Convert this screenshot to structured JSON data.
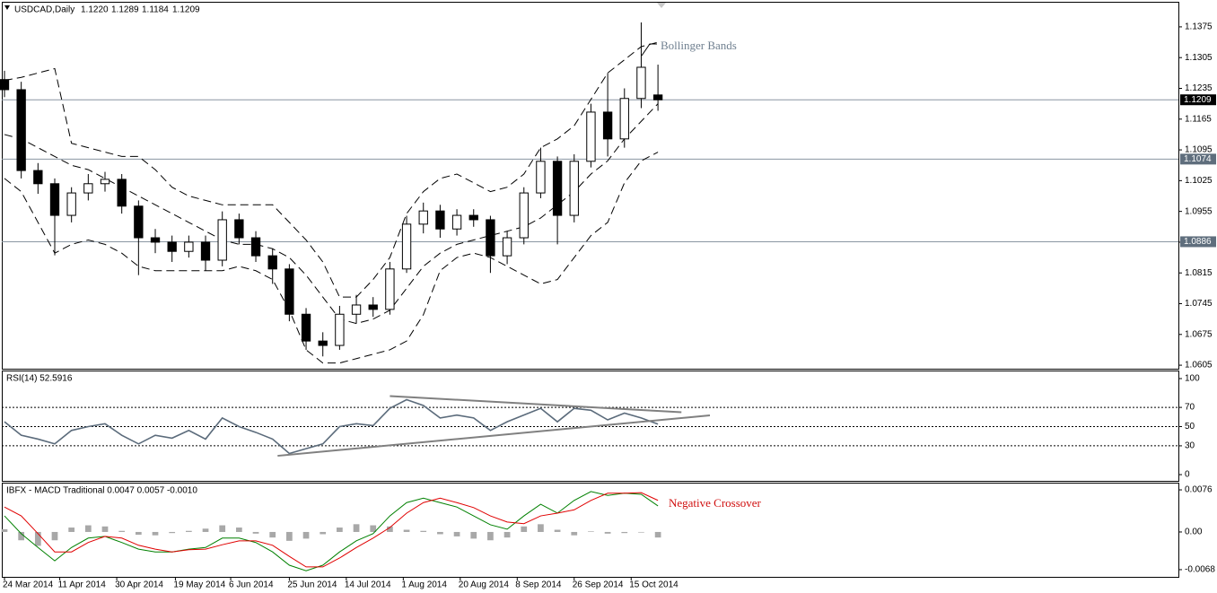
{
  "chart_data": [
    {
      "type": "candlestick",
      "title": "USDCAD,Daily",
      "header_labels": [
        "1.1220",
        "1.1289",
        "1.1184",
        "1.1209"
      ],
      "color_up": "#ffffff",
      "color_down": "#000000",
      "open": [
        1.1255,
        1.1232,
        1.1048,
        1.1018,
        1.0946,
        1.0997,
        1.1018,
        1.1028,
        1.0967,
        1.0895,
        1.0885,
        1.0864,
        1.0885,
        1.0844,
        1.0936,
        1.0895,
        1.0854,
        1.0824,
        1.0721,
        1.066,
        1.065,
        1.0721,
        1.0742,
        1.0732,
        1.0824,
        1.0926,
        1.0956,
        1.0915,
        1.0946,
        1.0936,
        1.0854,
        1.0895,
        1.0997,
        1.1069,
        1.0946,
        1.1069,
        1.1181,
        1.112,
        1.1212,
        1.122
      ],
      "high": [
        1.1275,
        1.125,
        1.1065,
        1.103,
        1.101,
        1.104,
        1.1045,
        1.104,
        1.098,
        1.0915,
        1.09,
        1.09,
        1.09,
        1.0955,
        1.095,
        1.091,
        1.087,
        1.0835,
        1.0735,
        1.068,
        1.074,
        1.0765,
        1.076,
        1.084,
        1.0945,
        1.0975,
        1.097,
        1.096,
        1.096,
        1.0945,
        1.091,
        1.101,
        1.11,
        1.108,
        1.1085,
        1.12,
        1.127,
        1.1235,
        1.1385,
        1.1289
      ],
      "low": [
        1.1215,
        1.103,
        1.0995,
        1.0855,
        1.093,
        1.098,
        1.1,
        1.095,
        1.081,
        1.086,
        1.084,
        1.085,
        1.082,
        1.083,
        1.088,
        1.084,
        1.079,
        1.0705,
        1.064,
        1.0625,
        1.064,
        1.07,
        1.0715,
        1.072,
        1.0815,
        1.0905,
        1.0895,
        1.09,
        1.092,
        1.0815,
        1.0835,
        1.088,
        1.0985,
        1.088,
        1.093,
        1.1055,
        1.108,
        1.11,
        1.119,
        1.1184
      ],
      "close": [
        1.1232,
        1.1048,
        1.1018,
        1.0946,
        1.0997,
        1.1018,
        1.1028,
        1.0967,
        1.0895,
        1.0885,
        1.0864,
        1.0885,
        1.0844,
        1.0936,
        1.0895,
        1.0854,
        1.0824,
        1.0721,
        1.066,
        1.065,
        1.0721,
        1.0742,
        1.0732,
        1.0824,
        1.0926,
        1.0956,
        1.0915,
        1.0946,
        1.0936,
        1.0854,
        1.0895,
        1.0997,
        1.1069,
        1.0946,
        1.1069,
        1.1181,
        1.112,
        1.1212,
        1.1283,
        1.1209
      ],
      "bands": {
        "label": "Bollinger Bands",
        "color": "#000000",
        "upper": [
          1.1253,
          1.126,
          1.127,
          1.128,
          1.111,
          1.11,
          1.109,
          1.108,
          1.108,
          1.105,
          1.101,
          1.099,
          1.098,
          1.097,
          1.097,
          1.097,
          1.097,
          1.093,
          1.089,
          1.084,
          1.076,
          1.076,
          1.08,
          1.085,
          1.095,
          1.1,
          1.103,
          1.104,
          1.102,
          1.1,
          1.101,
          1.104,
          1.11,
          1.112,
          1.115,
          1.121,
          1.127,
          1.13,
          1.133,
          1.134
        ],
        "middle": [
          1.113,
          1.112,
          1.11,
          1.108,
          1.106,
          1.105,
          1.103,
          1.101,
          1.099,
          1.097,
          1.095,
          1.093,
          1.091,
          1.089,
          1.088,
          1.088,
          1.087,
          1.085,
          1.081,
          1.076,
          1.071,
          1.07,
          1.071,
          1.073,
          1.078,
          1.083,
          1.086,
          1.088,
          1.089,
          1.09,
          1.091,
          1.092,
          1.094,
          1.097,
          1.1,
          1.104,
          1.107,
          1.112,
          1.116,
          1.12
        ],
        "lower": [
          1.103,
          1.1,
          1.093,
          1.086,
          1.088,
          1.089,
          1.088,
          1.086,
          1.083,
          1.082,
          1.082,
          1.082,
          1.082,
          1.082,
          1.083,
          1.082,
          1.08,
          1.073,
          1.064,
          1.061,
          1.061,
          1.062,
          1.063,
          1.064,
          1.066,
          1.072,
          1.082,
          1.085,
          1.086,
          1.085,
          1.083,
          1.081,
          1.079,
          1.08,
          1.085,
          1.09,
          1.093,
          1.102,
          1.107,
          1.109
        ]
      },
      "hlines": [
        {
          "value": 1.1209,
          "color": "#000000"
        },
        {
          "value": 1.1074,
          "color": "#5f6e7d"
        },
        {
          "value": 1.0886,
          "color": "#5f6e7d"
        }
      ],
      "ylim": [
        1.0597,
        1.1432
      ],
      "yticks": [
        1.0605,
        1.0675,
        1.0745,
        1.0815,
        1.0885,
        1.0955,
        1.1025,
        1.1095,
        1.1165,
        1.1235,
        1.1305,
        1.1375
      ],
      "xlim": [
        -0.16,
        70.06
      ],
      "xticks": [
        {
          "value": 0,
          "label": "24 Mar 2014"
        },
        {
          "value": 3.3,
          "label": "11 Apr 2014"
        },
        {
          "value": 6.7,
          "label": "30 Apr 2014"
        },
        {
          "value": 10.2,
          "label": "19 May 2014"
        },
        {
          "value": 13.5,
          "label": "6 Jun 2014"
        },
        {
          "value": 17,
          "label": "25 Jun 2014"
        },
        {
          "value": 20.4,
          "label": "14 Jul 2014"
        },
        {
          "value": 23.8,
          "label": "1 Aug 2014"
        },
        {
          "value": 27.2,
          "label": "20 Aug 2014"
        },
        {
          "value": 30.6,
          "label": "8 Sep 2014"
        },
        {
          "value": 34,
          "label": "26 Sep 2014"
        },
        {
          "value": 37.4,
          "label": "15 Oct 2014"
        }
      ]
    },
    {
      "type": "line",
      "title": "RSI(14) 52.5916",
      "color": "#5b6b7b",
      "values": [
        55,
        41,
        37,
        32,
        46,
        50,
        53,
        41,
        32,
        41,
        38,
        46,
        37,
        59,
        50,
        44,
        37,
        22,
        27,
        32,
        50,
        53,
        51,
        69,
        78,
        72,
        59,
        62,
        59,
        46,
        55,
        62,
        69,
        55,
        69,
        67,
        57,
        64,
        59,
        52.6
      ],
      "levels": [
        70,
        50,
        30
      ],
      "trendlines": [
        {
          "x": [
            23,
            40.4
          ],
          "y": [
            81.8,
            65
          ]
        },
        {
          "x": [
            16.3,
            42.1
          ],
          "y": [
            19.6,
            61.7
          ]
        }
      ],
      "ylim": [
        -6.5,
        108.4
      ],
      "yticks": [
        100,
        70,
        50,
        30,
        0
      ]
    },
    {
      "type": "macd",
      "title": "IBFX - MACD Traditional 0.0047 0.0057 -0.0010",
      "annotation": "Negative Crossover",
      "histogram": {
        "color": "#a8a8a8",
        "values": [
          0.0005,
          -0.0015,
          -0.0025,
          -0.0015,
          0.0008,
          0.0012,
          0.001,
          0.0002,
          -0.0005,
          -0.0006,
          -0.0002,
          0.0002,
          0.0006,
          0.0012,
          0.0008,
          -0.0003,
          -0.001,
          -0.0016,
          -0.0012,
          -0.0004,
          0.0008,
          0.0014,
          0.0012,
          0.001,
          0.0004,
          0.0002,
          -0.0004,
          -0.0008,
          -0.0012,
          -0.0015,
          -0.001,
          0.001,
          0.0014,
          0.0004,
          -0.0006,
          0.0001,
          -0.0003,
          -0.0002,
          -0.0001,
          -0.001
        ]
      },
      "series": [
        {
          "color": "#008000",
          "values": [
            0.0029,
            -0.0003,
            -0.0028,
            -0.0052,
            -0.0028,
            -0.0011,
            -0.0008,
            -0.0019,
            -0.0031,
            -0.0036,
            -0.0036,
            -0.0031,
            -0.0028,
            -0.0011,
            -0.0011,
            -0.0019,
            -0.0036,
            -0.006,
            -0.007,
            -0.006,
            -0.0036,
            -0.0016,
            -0.0003,
            0.0029,
            0.0053,
            0.0061,
            0.0053,
            0.0045,
            0.0029,
            0.0013,
            0.0005,
            0.0029,
            0.005,
            0.0034,
            0.0057,
            0.0073,
            0.0066,
            0.007,
            0.0068,
            0.0047
          ]
        },
        {
          "color": "#e00000",
          "values": [
            0.0045,
            0.0029,
            -0.0003,
            -0.0036,
            -0.0036,
            -0.0019,
            -0.0008,
            -0.0011,
            -0.0024,
            -0.0031,
            -0.0036,
            -0.0032,
            -0.0031,
            -0.0023,
            -0.0016,
            -0.0016,
            -0.0024,
            -0.0044,
            -0.0063,
            -0.0063,
            -0.0047,
            -0.0028,
            -0.0011,
            0.0008,
            0.0034,
            0.0053,
            0.0061,
            0.0053,
            0.0044,
            0.0029,
            0.0018,
            0.0015,
            0.0029,
            0.0034,
            0.004,
            0.0057,
            0.007,
            0.007,
            0.0071,
            0.0057
          ]
        }
      ],
      "ylim": [
        -0.0081,
        0.0089
      ],
      "yticks": [
        0.0076,
        {
          "value": 0,
          "label": "0.00"
        },
        -0.0068
      ]
    }
  ]
}
